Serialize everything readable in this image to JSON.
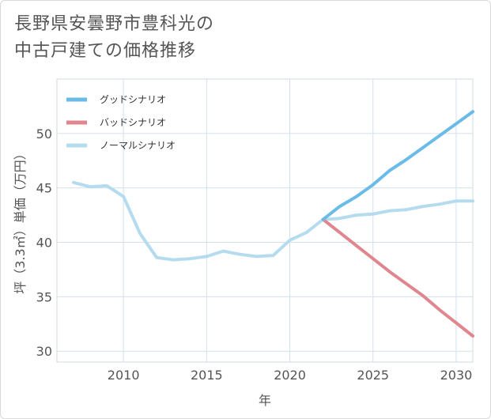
{
  "title": {
    "line1": "長野県安曇野市豊科光の",
    "line2": "中古戸建ての価格推移"
  },
  "chart_data": {
    "type": "line",
    "xlabel": "年",
    "ylabel": "坪（3.3㎡）単価（万円）",
    "xlim": [
      2006,
      2031
    ],
    "ylim": [
      29,
      55
    ],
    "xticks": [
      2010,
      2015,
      2020,
      2025,
      2030
    ],
    "yticks": [
      30,
      35,
      40,
      45,
      50
    ],
    "grid": true,
    "legend_position": "top-left",
    "series": [
      {
        "name": "グッドシナリオ",
        "color": "#6bbbe9",
        "x": [
          2022,
          2023,
          2024,
          2025,
          2026,
          2027,
          2028,
          2029,
          2030,
          2031
        ],
        "values": [
          42.1,
          43.3,
          44.2,
          45.3,
          46.6,
          47.6,
          48.7,
          49.8,
          50.9,
          52.0
        ]
      },
      {
        "name": "バッドシナリオ",
        "color": "#e0868f",
        "x": [
          2022,
          2023,
          2024,
          2025,
          2026,
          2027,
          2028,
          2029,
          2030,
          2031
        ],
        "values": [
          42.1,
          40.9,
          39.7,
          38.5,
          37.3,
          36.2,
          35.1,
          33.8,
          32.6,
          31.4
        ]
      },
      {
        "name": "ノーマルシナリオ",
        "color": "#b5dcee",
        "x": [
          2007,
          2008,
          2009,
          2010,
          2011,
          2012,
          2013,
          2014,
          2015,
          2016,
          2017,
          2018,
          2019,
          2020,
          2021,
          2022,
          2023,
          2024,
          2025,
          2026,
          2027,
          2028,
          2029,
          2030,
          2031
        ],
        "values": [
          45.5,
          45.1,
          45.2,
          44.2,
          40.8,
          38.6,
          38.4,
          38.5,
          38.7,
          39.2,
          38.9,
          38.7,
          38.8,
          40.2,
          40.9,
          42.1,
          42.2,
          42.5,
          42.6,
          42.9,
          43.0,
          43.3,
          43.5,
          43.8,
          43.8
        ]
      }
    ]
  }
}
